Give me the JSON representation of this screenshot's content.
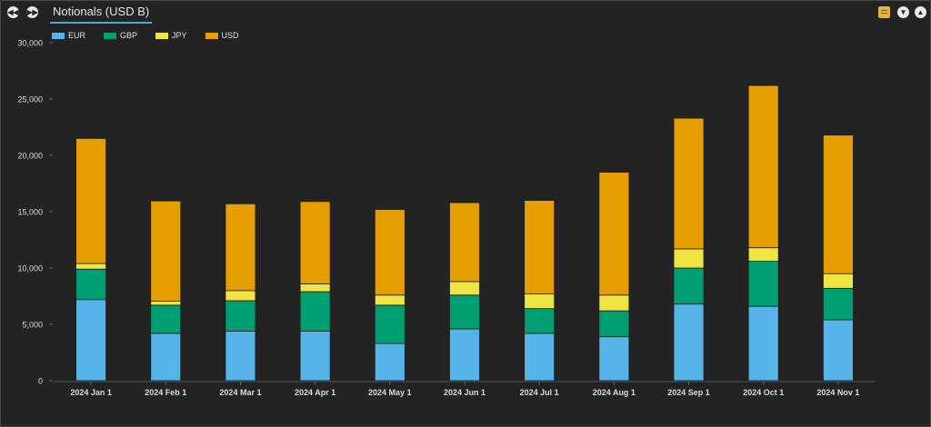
{
  "title_tab": "Notionals (USD B)",
  "nav": {
    "back_glyph": "◀◀",
    "forward_glyph": "▶▶"
  },
  "toolbar": {
    "icons": [
      "sheet-icon",
      "expand-icon",
      "collapse-icon"
    ]
  },
  "chart_data": {
    "type": "bar",
    "stacked": true,
    "categories": [
      "2024 Jan 1",
      "2024 Feb 1",
      "2024 Mar 1",
      "2024 Apr 1",
      "2024 May 1",
      "2024 Jun 1",
      "2024 Jul 1",
      "2024 Aug 1",
      "2024 Sep 1",
      "2024 Oct 1",
      "2024 Nov 1"
    ],
    "series": [
      {
        "name": "EUR",
        "color": "#56b4e9",
        "values": [
          7200,
          4200,
          4400,
          4400,
          3300,
          4600,
          4200,
          3900,
          6800,
          6600,
          5400
        ]
      },
      {
        "name": "GBP",
        "color": "#009e73",
        "values": [
          2700,
          2500,
          2700,
          3500,
          3400,
          3000,
          2200,
          2300,
          3200,
          4000,
          2800
        ]
      },
      {
        "name": "JPY",
        "color": "#f0e442",
        "values": [
          500,
          350,
          900,
          700,
          900,
          1200,
          1300,
          1400,
          1700,
          1200,
          1300
        ]
      },
      {
        "name": "USD",
        "color": "#e69f00",
        "values": [
          11100,
          8900,
          7700,
          7300,
          7600,
          7000,
          8300,
          10900,
          11600,
          14400,
          12300
        ]
      }
    ],
    "ylim": [
      0,
      30000
    ],
    "yticks": [
      "0",
      "5,000",
      "10,000",
      "15,000",
      "20,000",
      "25,000",
      "30,000"
    ],
    "grid": false,
    "legend_position": "top-left"
  }
}
